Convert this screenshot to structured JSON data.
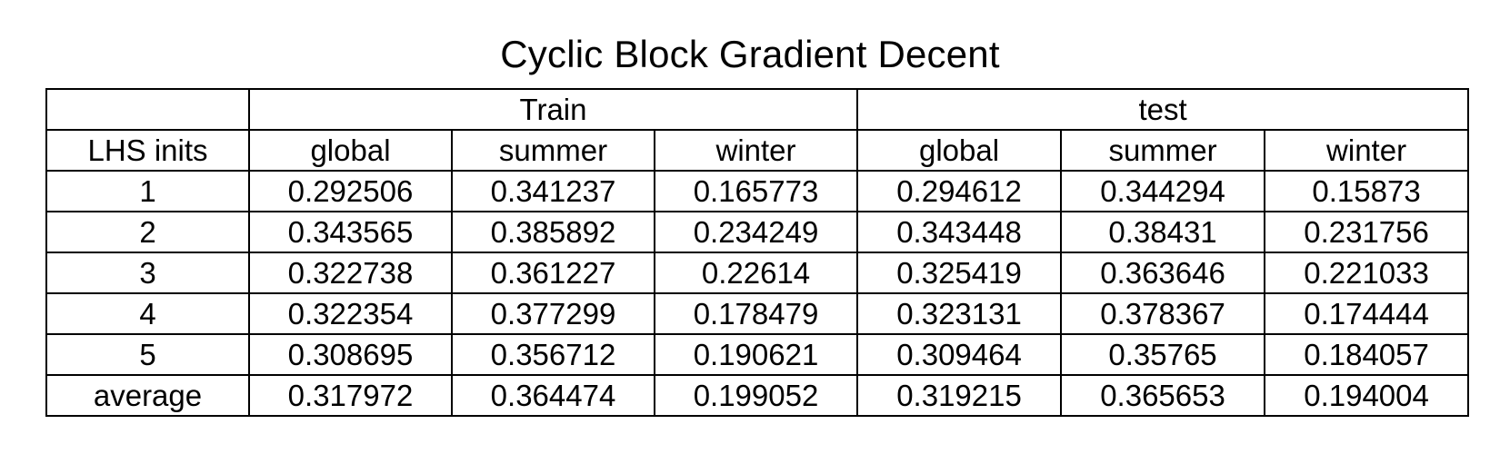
{
  "chart_data": {
    "type": "table",
    "title": "Cyclic Block Gradient Decent",
    "groups": [
      {
        "name": "Train",
        "columns": [
          "global",
          "summer",
          "winter"
        ]
      },
      {
        "name": "test",
        "columns": [
          "global",
          "summer",
          "winter"
        ]
      }
    ],
    "row_header": "LHS inits",
    "rows": [
      {
        "label": "1",
        "values": [
          "0.292506",
          "0.341237",
          "0.165773",
          "0.294612",
          "0.344294",
          "0.15873"
        ]
      },
      {
        "label": "2",
        "values": [
          "0.343565",
          "0.385892",
          "0.234249",
          "0.343448",
          "0.38431",
          "0.231756"
        ]
      },
      {
        "label": "3",
        "values": [
          "0.322738",
          "0.361227",
          "0.22614",
          "0.325419",
          "0.363646",
          "0.221033"
        ]
      },
      {
        "label": "4",
        "values": [
          "0.322354",
          "0.377299",
          "0.178479",
          "0.323131",
          "0.378367",
          "0.174444"
        ]
      },
      {
        "label": "5",
        "values": [
          "0.308695",
          "0.356712",
          "0.190621",
          "0.309464",
          "0.35765",
          "0.184057"
        ]
      },
      {
        "label": "average",
        "values": [
          "0.317972",
          "0.364474",
          "0.199052",
          "0.319215",
          "0.365653",
          "0.194004"
        ]
      }
    ]
  }
}
